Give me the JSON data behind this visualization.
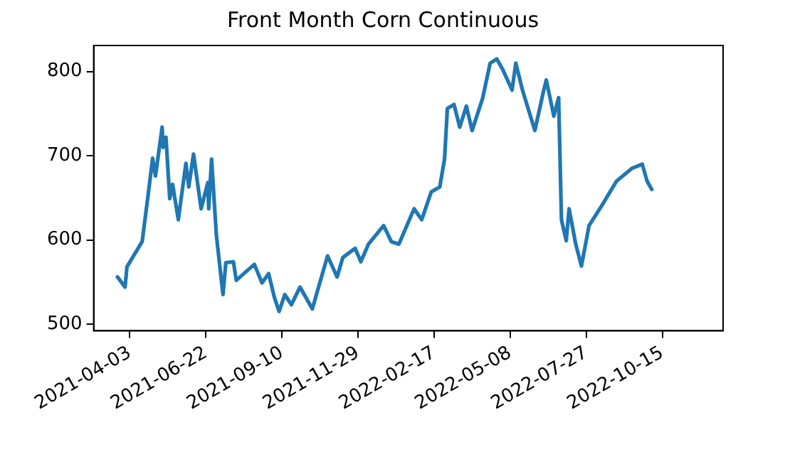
{
  "chart_data": {
    "type": "line",
    "title": "Front Month Corn Continuous",
    "x": [
      "2021-03-21",
      "2021-03-29",
      "2021-03-31",
      "2021-04-08",
      "2021-04-16",
      "2021-04-22",
      "2021-04-27",
      "2021-04-30",
      "2021-05-07",
      "2021-05-08",
      "2021-05-11",
      "2021-05-15",
      "2021-05-18",
      "2021-05-24",
      "2021-06-01",
      "2021-06-04",
      "2021-06-09",
      "2021-06-17",
      "2021-06-24",
      "2021-06-25",
      "2021-06-28",
      "2021-07-03",
      "2021-07-10",
      "2021-07-13",
      "2021-07-21",
      "2021-07-24",
      "2021-08-01",
      "2021-08-12",
      "2021-08-20",
      "2021-08-27",
      "2021-09-02",
      "2021-09-07",
      "2021-09-13",
      "2021-09-20",
      "2021-09-29",
      "2021-10-12",
      "2021-10-17",
      "2021-10-28",
      "2021-11-07",
      "2021-11-13",
      "2021-11-26",
      "2021-12-02",
      "2021-12-10",
      "2021-12-26",
      "2022-01-03",
      "2022-01-11",
      "2022-01-27",
      "2022-02-04",
      "2022-02-14",
      "2022-02-23",
      "2022-02-28",
      "2022-03-03",
      "2022-03-10",
      "2022-03-16",
      "2022-03-23",
      "2022-03-29",
      "2022-04-09",
      "2022-04-17",
      "2022-04-24",
      "2022-04-30",
      "2022-05-10",
      "2022-05-14",
      "2022-05-21",
      "2022-06-03",
      "2022-06-12",
      "2022-06-15",
      "2022-06-23",
      "2022-06-28",
      "2022-07-01",
      "2022-07-06",
      "2022-07-09",
      "2022-07-16",
      "2022-07-22",
      "2022-07-30",
      "2022-08-12",
      "2022-08-28",
      "2022-09-13",
      "2022-09-24",
      "2022-09-29",
      "2022-10-04"
    ],
    "series": [
      {
        "color": "#1f77b4",
        "values": [
          556,
          544,
          568,
          583,
          598,
          651,
          697,
          676,
          734,
          710,
          722,
          649,
          666,
          624,
          691,
          663,
          702,
          637,
          668,
          637,
          696,
          606,
          535,
          573,
          574,
          552,
          560,
          571,
          549,
          560,
          532,
          515,
          535,
          523,
          544,
          518,
          538,
          581,
          556,
          579,
          590,
          574,
          595,
          617,
          598,
          595,
          637,
          624,
          657,
          663,
          696,
          756,
          761,
          734,
          759,
          730,
          768,
          810,
          815,
          803,
          778,
          810,
          778,
          730,
          776,
          790,
          747,
          769,
          624,
          599,
          637,
          595,
          569,
          617,
          640,
          670,
          685,
          690,
          670,
          660
        ]
      }
    ],
    "xlim": [
      "2021-02-24",
      "2022-12-18"
    ],
    "xticks": [
      "2021-04-03",
      "2021-06-22",
      "2021-09-10",
      "2021-11-29",
      "2022-02-17",
      "2022-05-08",
      "2022-07-27",
      "2022-10-15"
    ],
    "ylim": [
      492,
      831
    ],
    "yticks": [
      500,
      600,
      700,
      800
    ],
    "grid": false,
    "legend": false,
    "marker": "none",
    "line_style": "solid"
  }
}
